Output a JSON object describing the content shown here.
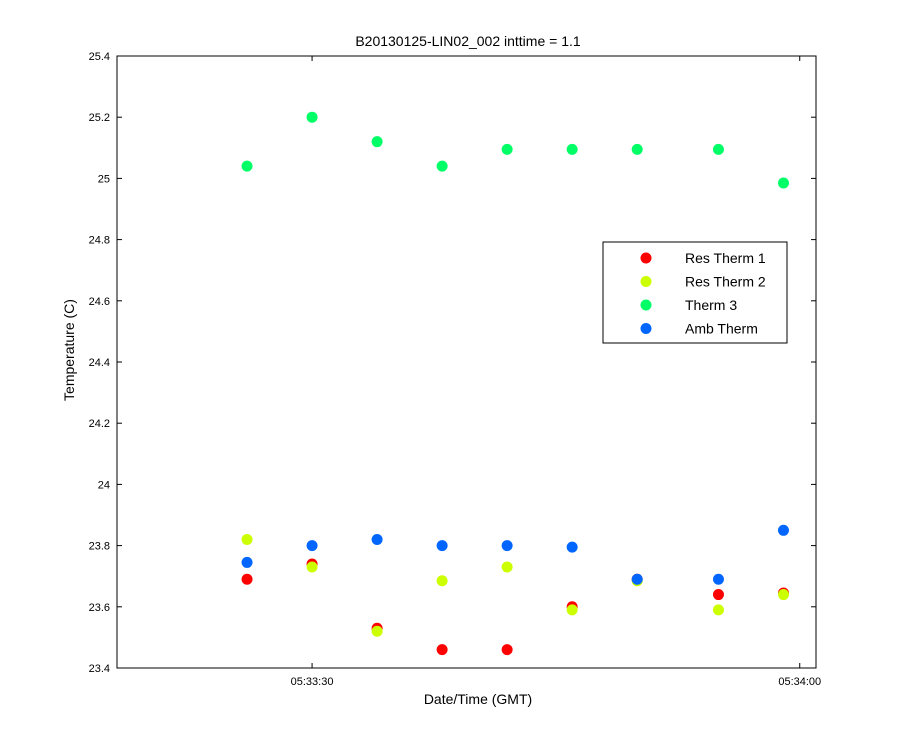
{
  "chart_data": {
    "type": "scatter",
    "title": "B20130125-LIN02_002 inttime = 1.1",
    "xlabel": "Date/Time (GMT)",
    "ylabel": "Temperature (C)",
    "xlim": [
      "05:33:18",
      "05:34:01"
    ],
    "ylim": [
      23.4,
      25.4
    ],
    "yticks": [
      23.4,
      23.6,
      23.8,
      24,
      24.2,
      24.4,
      24.6,
      24.8,
      25,
      25.2,
      25.4
    ],
    "ytick_labels": [
      "23.4",
      "23.6",
      "23.8",
      "24",
      "24.2",
      "24.4",
      "24.6",
      "24.8",
      "25",
      "25.2",
      "25.4"
    ],
    "xticks": [
      "05:33:30",
      "05:34:00"
    ],
    "xtick_labels": [
      "05:33:30",
      "05:34:00"
    ],
    "x": [
      "05:33:26",
      "05:33:30",
      "05:33:34",
      "05:33:38",
      "05:33:42",
      "05:33:46",
      "05:33:50",
      "05:33:55",
      "05:33:59"
    ],
    "grid": false,
    "legend_position": "right",
    "series": [
      {
        "name": "Res Therm 1",
        "color": "#ff0000",
        "values": [
          23.69,
          23.74,
          23.53,
          23.46,
          23.46,
          23.6,
          23.69,
          23.64,
          23.645
        ]
      },
      {
        "name": "Res Therm 2",
        "color": "#ccff00",
        "values": [
          23.82,
          23.73,
          23.52,
          23.685,
          23.73,
          23.59,
          23.685,
          23.59,
          23.64
        ]
      },
      {
        "name": "Therm 3",
        "color": "#00ff66",
        "values": [
          25.04,
          25.2,
          25.12,
          25.04,
          25.095,
          25.095,
          25.095,
          25.095,
          24.985
        ]
      },
      {
        "name": "Amb Therm",
        "color": "#0066ff",
        "values": [
          23.745,
          23.8,
          23.82,
          23.8,
          23.8,
          23.795,
          23.69,
          23.69,
          23.85
        ]
      }
    ]
  }
}
